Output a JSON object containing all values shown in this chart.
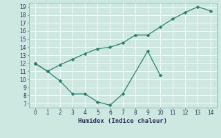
{
  "line1_x": [
    0,
    1,
    2,
    3,
    4,
    5,
    6,
    7,
    8,
    9,
    10,
    11,
    12,
    13,
    14
  ],
  "line1_y": [
    12,
    11.0,
    11.8,
    12.5,
    13.2,
    13.8,
    14.0,
    14.5,
    15.5,
    15.5,
    16.5,
    17.5,
    18.3,
    19.0,
    18.5
  ],
  "line2_x": [
    0,
    1,
    2,
    3,
    4,
    5,
    6,
    7,
    9,
    10
  ],
  "line2_y": [
    12,
    11.0,
    9.8,
    8.2,
    8.2,
    7.2,
    6.8,
    8.2,
    13.5,
    10.5
  ],
  "line_color": "#2e7d6e",
  "bg_color": "#cce8e0",
  "grid_color": "#b8d8d0",
  "xlabel": "Humidex (Indice chaleur)",
  "xlim": [
    -0.5,
    14.5
  ],
  "ylim": [
    6.5,
    19.5
  ],
  "yticks": [
    7,
    8,
    9,
    10,
    11,
    12,
    13,
    14,
    15,
    16,
    17,
    18,
    19
  ],
  "xticks": [
    0,
    1,
    2,
    3,
    4,
    5,
    6,
    7,
    8,
    9,
    10,
    11,
    12,
    13,
    14
  ],
  "font_color": "#2e3060",
  "marker_size": 2.5,
  "line_width": 0.9
}
